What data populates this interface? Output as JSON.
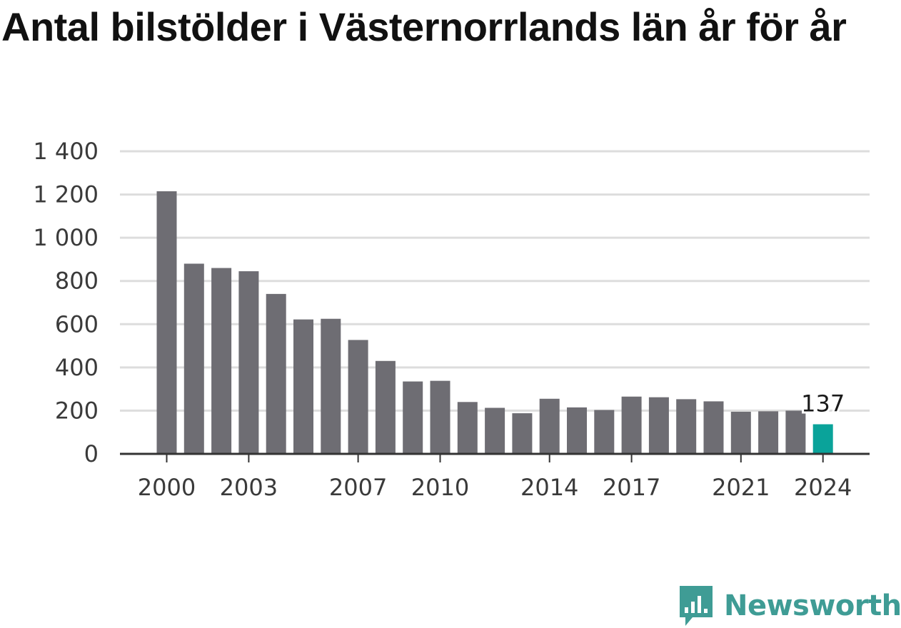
{
  "title": "Antal bilstölder i Västernorrlands län år för år",
  "colors": {
    "bar": "#6e6d73",
    "highlight": "#0aa39a",
    "grid": "#dddddd",
    "axis": "#333333",
    "brand": "#3f9c95"
  },
  "brand": {
    "name": "Newsworthy",
    "icon": "bar-chart-speech-bubble-icon"
  },
  "chart_data": {
    "type": "bar",
    "title": "Antal bilstölder i Västernorrlands län år för år",
    "xlabel": "",
    "ylabel": "",
    "ylim": [
      0,
      1400
    ],
    "yticks": [
      0,
      200,
      400,
      600,
      800,
      1000,
      1200,
      1400
    ],
    "ytick_labels": [
      "0",
      "200",
      "400",
      "600",
      "800",
      "1 000",
      "1 200",
      "1 400"
    ],
    "xtick_labels": [
      "2000",
      "2003",
      "2007",
      "2010",
      "2014",
      "2017",
      "2021",
      "2024"
    ],
    "grid": true,
    "categories": [
      "2000",
      "2001",
      "2002",
      "2003",
      "2004",
      "2005",
      "2006",
      "2007",
      "2008",
      "2009",
      "2010",
      "2011",
      "2012",
      "2013",
      "2014",
      "2015",
      "2016",
      "2017",
      "2018",
      "2019",
      "2020",
      "2021",
      "2022",
      "2023",
      "2024"
    ],
    "values": [
      1215,
      880,
      860,
      845,
      740,
      622,
      625,
      527,
      430,
      335,
      338,
      240,
      213,
      188,
      255,
      215,
      203,
      265,
      262,
      253,
      243,
      195,
      197,
      200,
      137
    ],
    "highlight_index": 24,
    "annotation": "137"
  }
}
